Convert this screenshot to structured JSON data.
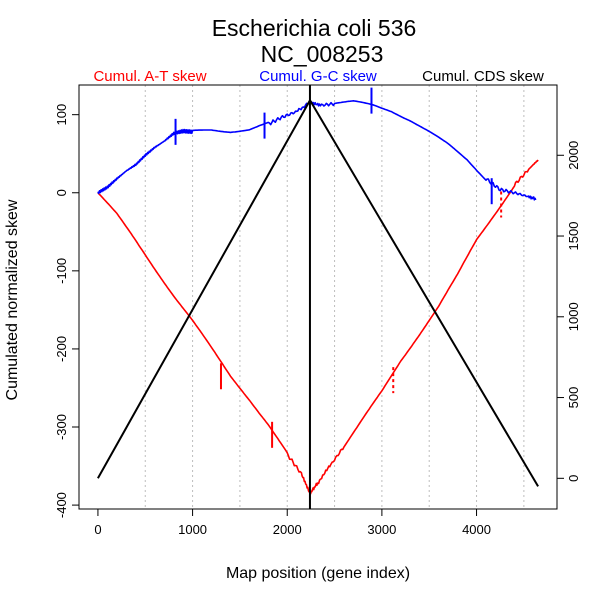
{
  "chart_data": {
    "type": "line",
    "title_line1": "Escherichia coli 536",
    "title_line2": "NC_008253",
    "legend": [
      {
        "label": "Cumul. A-T skew",
        "color": "#ff0000"
      },
      {
        "label": "Cumul. G-C skew",
        "color": "#0000ff"
      },
      {
        "label": "Cumul. CDS skew",
        "color": "#000000"
      }
    ],
    "xlabel": "Map position (gene index)",
    "ylabel": "Cumulated normalized skew",
    "xlim": [
      -200,
      4850
    ],
    "ylim_left": [
      -405,
      138
    ],
    "ylim_right": [
      -190,
      2435
    ],
    "x_ticks": [
      0,
      1000,
      2000,
      3000,
      4000
    ],
    "x_tick_labels": [
      "0",
      "1000",
      "2000",
      "3000",
      "4000"
    ],
    "y_left_ticks": [
      100,
      0,
      -100,
      -200,
      -300,
      -400
    ],
    "y_left_tick_labels": [
      "100",
      "0",
      "-100",
      "-200",
      "-300",
      "-400"
    ],
    "y_right_ticks": [
      2000,
      1500,
      1000,
      500,
      0
    ],
    "y_right_tick_labels": [
      "2000",
      "1500",
      "1000",
      "500",
      "0"
    ],
    "gridlines_x": [
      500,
      1000,
      1500,
      2000,
      2500,
      3000,
      3500,
      4000,
      4500
    ],
    "series": [
      {
        "name": "Cumul. A-T skew",
        "axis": "left",
        "color": "#ff0000",
        "x": [
          0,
          200,
          400,
          600,
          800,
          1000,
          1200,
          1400,
          1600,
          1800,
          2000,
          2150,
          2240,
          2320,
          2450,
          2600,
          2800,
          3000,
          3200,
          3400,
          3600,
          3800,
          4000,
          4200,
          4400,
          4550,
          4650
        ],
        "y": [
          0,
          -28,
          -62,
          -97,
          -132,
          -165,
          -200,
          -235,
          -265,
          -298,
          -335,
          -360,
          -385,
          -372,
          -350,
          -325,
          -290,
          -255,
          -215,
          -180,
          -145,
          -105,
          -60,
          -25,
          10,
          30,
          42
        ]
      },
      {
        "name": "Cumul. G-C skew",
        "axis": "left",
        "color": "#0000ff",
        "x": [
          0,
          100,
          200,
          300,
          400,
          500,
          600,
          700,
          800,
          900,
          1000,
          1200,
          1400,
          1600,
          1800,
          1950,
          2100,
          2240,
          2350,
          2500,
          2700,
          2900,
          3100,
          3300,
          3500,
          3700,
          3900,
          4100,
          4250,
          4400,
          4550,
          4630
        ],
        "y": [
          0,
          7,
          18,
          28,
          36,
          48,
          58,
          66,
          76,
          79,
          78,
          80,
          78,
          80,
          88,
          97,
          104,
          116,
          112,
          114,
          116,
          112,
          105,
          93,
          78,
          62,
          43,
          18,
          4,
          0,
          -5,
          -8
        ]
      },
      {
        "name": "Cumul. CDS skew",
        "axis": "right",
        "color": "#000000",
        "x": [
          0,
          2240,
          4650
        ],
        "y": [
          0,
          2340,
          -50
        ]
      }
    ],
    "vertical_line_x": 2240,
    "markers": [
      {
        "series": "Cumul. G-C skew",
        "x": 820,
        "y": 78,
        "style": "solid"
      },
      {
        "series": "Cumul. G-C skew",
        "x": 1760,
        "y": 86,
        "style": "solid"
      },
      {
        "series": "Cumul. G-C skew",
        "x": 2890,
        "y": 118,
        "style": "solid"
      },
      {
        "series": "Cumul. G-C skew",
        "x": 4160,
        "y": 2,
        "style": "solid"
      },
      {
        "series": "Cumul. A-T skew",
        "x": 1300,
        "y": -235,
        "style": "solid"
      },
      {
        "series": "Cumul. A-T skew",
        "x": 1840,
        "y": -310,
        "style": "solid"
      },
      {
        "series": "Cumul. A-T skew",
        "x": 3120,
        "y": -240,
        "style": "dashed"
      },
      {
        "series": "Cumul. A-T skew",
        "x": 4260,
        "y": -15,
        "style": "dashed"
      }
    ]
  }
}
